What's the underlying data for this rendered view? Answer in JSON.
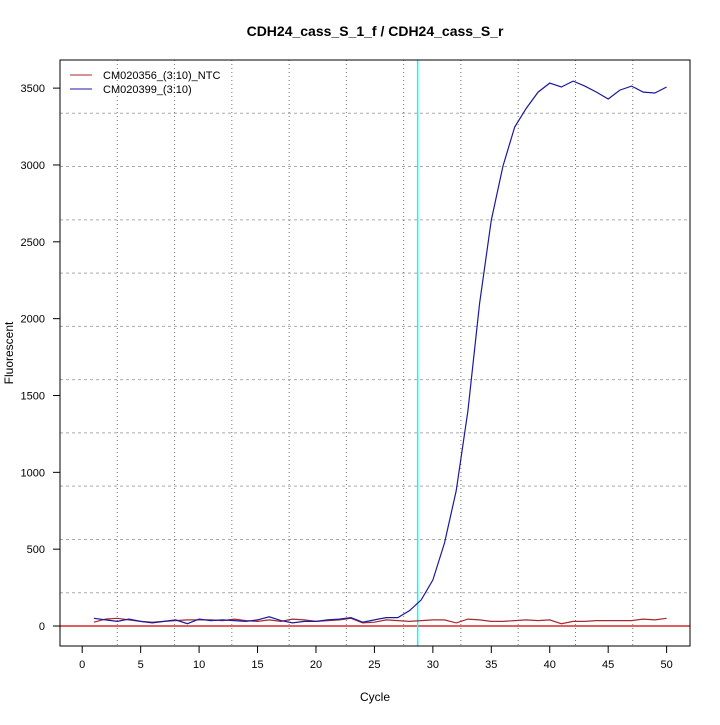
{
  "chart_data": {
    "type": "line",
    "title": "CDH24_cass_S_1_f / CDH24_cass_S_r",
    "xlabel": "Cycle",
    "ylabel": "Fluorescent",
    "xlim": [
      -1.9,
      52
    ],
    "ylim": [
      -130,
      3683
    ],
    "xticks": [
      0,
      5,
      10,
      15,
      20,
      25,
      30,
      35,
      40,
      45,
      50
    ],
    "yticks": [
      0,
      500,
      1000,
      1500,
      2000,
      2500,
      3000,
      3500
    ],
    "grid": true,
    "legend_position": "top-left",
    "threshold_line": {
      "y": 0,
      "color": "#cc0000"
    },
    "cycle_marker": {
      "x": 28.7,
      "color": "#00ffff"
    },
    "x": [
      1,
      2,
      3,
      4,
      5,
      6,
      7,
      8,
      9,
      10,
      11,
      12,
      13,
      14,
      15,
      16,
      17,
      18,
      19,
      20,
      21,
      22,
      23,
      24,
      25,
      26,
      27,
      28,
      29,
      30,
      31,
      32,
      33,
      34,
      35,
      36,
      37,
      38,
      39,
      40,
      41,
      42,
      43,
      44,
      45,
      46,
      47,
      48,
      49,
      50
    ],
    "series": [
      {
        "name": "CM020356_(3:10)_NTC",
        "color": "#a52a2a",
        "values": [
          25,
          45,
          50,
          40,
          30,
          25,
          30,
          35,
          40,
          40,
          40,
          35,
          45,
          35,
          30,
          40,
          30,
          45,
          40,
          30,
          35,
          40,
          50,
          20,
          25,
          40,
          35,
          30,
          35,
          40,
          40,
          20,
          45,
          40,
          30,
          30,
          35,
          40,
          35,
          40,
          15,
          30,
          30,
          35,
          35,
          35,
          35,
          45,
          40,
          50
        ]
      },
      {
        "name": "CM020399_(3:10)",
        "color": "#1a1a9c",
        "values": [
          50,
          40,
          30,
          45,
          30,
          20,
          30,
          40,
          15,
          45,
          35,
          40,
          35,
          30,
          40,
          60,
          35,
          20,
          30,
          30,
          40,
          45,
          55,
          25,
          40,
          55,
          55,
          100,
          170,
          300,
          540,
          880,
          1400,
          2100,
          2641,
          2993,
          3247,
          3370,
          3474,
          3533,
          3507,
          3546,
          3513,
          3474,
          3429,
          3487,
          3513,
          3474,
          3468,
          3507
        ]
      }
    ]
  }
}
